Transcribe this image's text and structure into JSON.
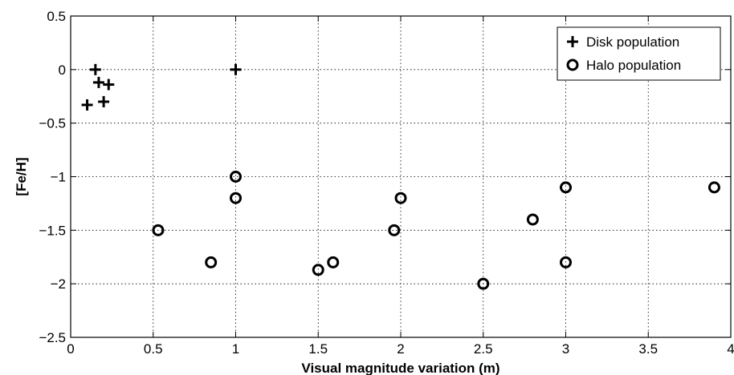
{
  "chart_data": {
    "type": "scatter",
    "title": "",
    "xlabel": "Visual magnitude variation (m)",
    "ylabel": "[Fe/H]",
    "xlim": [
      0,
      4
    ],
    "ylim": [
      -2.5,
      0.5
    ],
    "xticks": [
      0,
      0.5,
      1,
      1.5,
      2,
      2.5,
      3,
      3.5,
      4
    ],
    "yticks": [
      -2.5,
      -2,
      -1.5,
      -1,
      -0.5,
      0,
      0.5
    ],
    "xtick_labels": [
      "0",
      "0.5",
      "1",
      "1.5",
      "2",
      "2.5",
      "3",
      "3.5",
      "4"
    ],
    "ytick_labels": [
      "−2.5",
      "−2",
      "−1.5",
      "−1",
      "−0.5",
      "0",
      "0.5"
    ],
    "grid": true,
    "legend_position": "top-right",
    "series": [
      {
        "name": "Disk population",
        "marker": "plus",
        "x": [
          0.15,
          0.17,
          0.23,
          0.1,
          0.2,
          1.0
        ],
        "y": [
          0.0,
          -0.12,
          -0.14,
          -0.33,
          -0.3,
          0.0
        ]
      },
      {
        "name": "Halo population",
        "marker": "circle",
        "x": [
          0.53,
          0.85,
          1.0,
          1.0,
          1.5,
          1.59,
          1.96,
          2.0,
          2.5,
          2.8,
          3.0,
          3.0,
          3.9
        ],
        "y": [
          -1.5,
          -1.8,
          -1.0,
          -1.2,
          -1.87,
          -1.8,
          -1.5,
          -1.2,
          -2.0,
          -1.4,
          -1.1,
          -1.8,
          -1.1
        ]
      }
    ]
  }
}
